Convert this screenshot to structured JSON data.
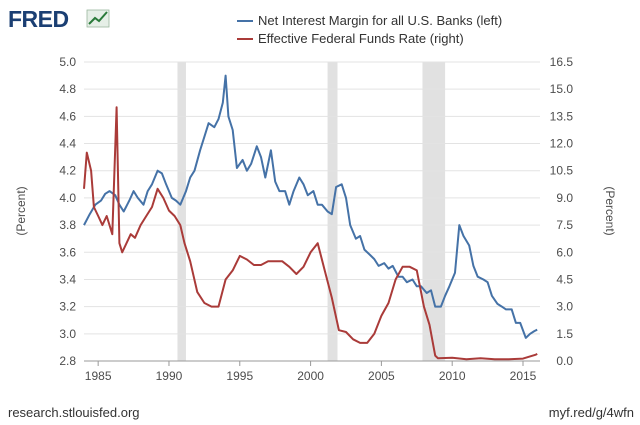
{
  "header": {
    "brand": "FRED",
    "brand_icon": "line-chart-icon",
    "brand_color": "#1b3f73",
    "icon_color": "#2a7a3a"
  },
  "footer": {
    "source": "research.stlouisfed.org",
    "short_url": "myf.red/g/4wfn"
  },
  "chart_data": {
    "type": "line",
    "title": "",
    "xlabel": "",
    "ylabel_left": "(Percent)",
    "ylabel_right": "(Percent)",
    "xlim": [
      1984,
      2016.2
    ],
    "ylim_left": [
      2.8,
      5.0
    ],
    "ylim_right": [
      0.0,
      16.5
    ],
    "x_ticks": [
      1985,
      1990,
      1995,
      2000,
      2005,
      2010,
      2015
    ],
    "x_tick_labels": [
      "1985",
      "1990",
      "1995",
      "2000",
      "2005",
      "2010",
      "2015"
    ],
    "y_ticks_left": [
      2.8,
      3.0,
      3.2,
      3.4,
      3.6,
      3.8,
      4.0,
      4.2,
      4.4,
      4.6,
      4.8,
      5.0
    ],
    "y_tick_labels_left": [
      "2.8",
      "3.0",
      "3.2",
      "3.4",
      "3.6",
      "3.8",
      "4.0",
      "4.2",
      "4.4",
      "4.6",
      "4.8",
      "5.0"
    ],
    "y_ticks_right": [
      0.0,
      1.5,
      3.0,
      4.5,
      6.0,
      7.5,
      9.0,
      10.5,
      12.0,
      13.5,
      15.0,
      16.5
    ],
    "y_tick_labels_right": [
      "0.0",
      "1.5",
      "3.0",
      "4.5",
      "6.0",
      "7.5",
      "9.0",
      "10.5",
      "12.0",
      "13.5",
      "15.0",
      "16.5"
    ],
    "grid": true,
    "legend_position": "top",
    "recessions": [
      [
        1990.6,
        1991.2
      ],
      [
        2001.2,
        2001.9
      ],
      [
        2007.9,
        2009.5
      ]
    ],
    "series": [
      {
        "name": "Net Interest Margin for all U.S. Banks (left)",
        "axis": "left",
        "color": "#4572a7",
        "x": [
          1984.0,
          1984.4,
          1984.8,
          1985.2,
          1985.5,
          1985.8,
          1986.2,
          1986.5,
          1986.8,
          1987.2,
          1987.5,
          1987.8,
          1988.2,
          1988.5,
          1988.8,
          1989.2,
          1989.5,
          1989.8,
          1990.2,
          1990.5,
          1990.8,
          1991.2,
          1991.5,
          1991.8,
          1992.2,
          1992.5,
          1992.8,
          1993.2,
          1993.5,
          1993.8,
          1994.0,
          1994.2,
          1994.5,
          1994.8,
          1995.2,
          1995.5,
          1995.8,
          1996.2,
          1996.5,
          1996.8,
          1997.2,
          1997.5,
          1997.8,
          1998.2,
          1998.5,
          1998.8,
          1999.2,
          1999.5,
          1999.8,
          2000.2,
          2000.5,
          2000.8,
          2001.2,
          2001.5,
          2001.8,
          2002.2,
          2002.5,
          2002.8,
          2003.2,
          2003.5,
          2003.8,
          2004.2,
          2004.5,
          2004.8,
          2005.2,
          2005.5,
          2005.8,
          2006.2,
          2006.5,
          2006.8,
          2007.2,
          2007.5,
          2007.8,
          2008.2,
          2008.5,
          2008.8,
          2009.2,
          2009.5,
          2009.8,
          2010.2,
          2010.5,
          2010.8,
          2011.2,
          2011.5,
          2011.8,
          2012.2,
          2012.5,
          2012.8,
          2013.2,
          2013.5,
          2013.8,
          2014.2,
          2014.5,
          2014.8,
          2015.2,
          2015.5,
          2015.8,
          2016.0
        ],
        "values": [
          3.8,
          3.88,
          3.95,
          3.98,
          4.03,
          4.05,
          4.02,
          3.95,
          3.9,
          3.98,
          4.05,
          4.0,
          3.95,
          4.05,
          4.1,
          4.2,
          4.18,
          4.1,
          4.0,
          3.98,
          3.95,
          4.05,
          4.15,
          4.2,
          4.35,
          4.45,
          4.55,
          4.52,
          4.58,
          4.7,
          4.9,
          4.6,
          4.5,
          4.22,
          4.28,
          4.2,
          4.25,
          4.38,
          4.3,
          4.15,
          4.35,
          4.12,
          4.05,
          4.05,
          3.95,
          4.05,
          4.15,
          4.1,
          4.02,
          4.05,
          3.95,
          3.95,
          3.9,
          3.88,
          4.08,
          4.1,
          4.0,
          3.8,
          3.7,
          3.72,
          3.62,
          3.58,
          3.55,
          3.5,
          3.52,
          3.48,
          3.5,
          3.42,
          3.42,
          3.38,
          3.4,
          3.35,
          3.35,
          3.3,
          3.32,
          3.2,
          3.2,
          3.28,
          3.35,
          3.45,
          3.8,
          3.72,
          3.65,
          3.5,
          3.42,
          3.4,
          3.38,
          3.28,
          3.22,
          3.2,
          3.18,
          3.18,
          3.08,
          3.08,
          2.97,
          3.0,
          3.02,
          3.03
        ]
      },
      {
        "name": "Effective Federal Funds Rate (right)",
        "axis": "right",
        "color": "#aa3b39",
        "x": [
          1984.0,
          1984.2,
          1984.5,
          1984.7,
          1985.0,
          1985.3,
          1985.6,
          1986.0,
          1986.3,
          1986.5,
          1986.7,
          1987.0,
          1987.3,
          1987.6,
          1988.0,
          1988.4,
          1988.8,
          1989.2,
          1989.6,
          1990.0,
          1990.4,
          1990.8,
          1991.1,
          1991.5,
          1992.0,
          1992.5,
          1993.0,
          1993.5,
          1994.0,
          1994.5,
          1995.0,
          1995.5,
          1996.0,
          1996.5,
          1997.0,
          1997.5,
          1998.0,
          1998.5,
          1999.0,
          1999.5,
          2000.0,
          2000.5,
          2001.0,
          2001.5,
          2002.0,
          2002.5,
          2003.0,
          2003.5,
          2004.0,
          2004.5,
          2005.0,
          2005.5,
          2006.0,
          2006.5,
          2007.0,
          2007.5,
          2008.0,
          2008.4,
          2008.8,
          2009.0,
          2010.0,
          2011.0,
          2012.0,
          2013.0,
          2014.0,
          2015.0,
          2015.9,
          2016.0
        ],
        "values": [
          9.5,
          11.5,
          10.5,
          8.5,
          8.0,
          7.5,
          8.0,
          7.0,
          14.0,
          6.5,
          6.0,
          6.5,
          7.0,
          6.8,
          7.5,
          8.0,
          8.5,
          9.5,
          9.0,
          8.3,
          8.0,
          7.5,
          6.5,
          5.5,
          3.8,
          3.2,
          3.0,
          3.0,
          4.5,
          5.0,
          5.8,
          5.6,
          5.3,
          5.3,
          5.5,
          5.5,
          5.5,
          5.2,
          4.8,
          5.2,
          6.0,
          6.5,
          5.0,
          3.5,
          1.7,
          1.6,
          1.2,
          1.0,
          1.0,
          1.5,
          2.5,
          3.2,
          4.5,
          5.2,
          5.2,
          5.0,
          3.0,
          2.0,
          0.3,
          0.15,
          0.18,
          0.1,
          0.15,
          0.1,
          0.1,
          0.13,
          0.35,
          0.4
        ]
      }
    ]
  }
}
